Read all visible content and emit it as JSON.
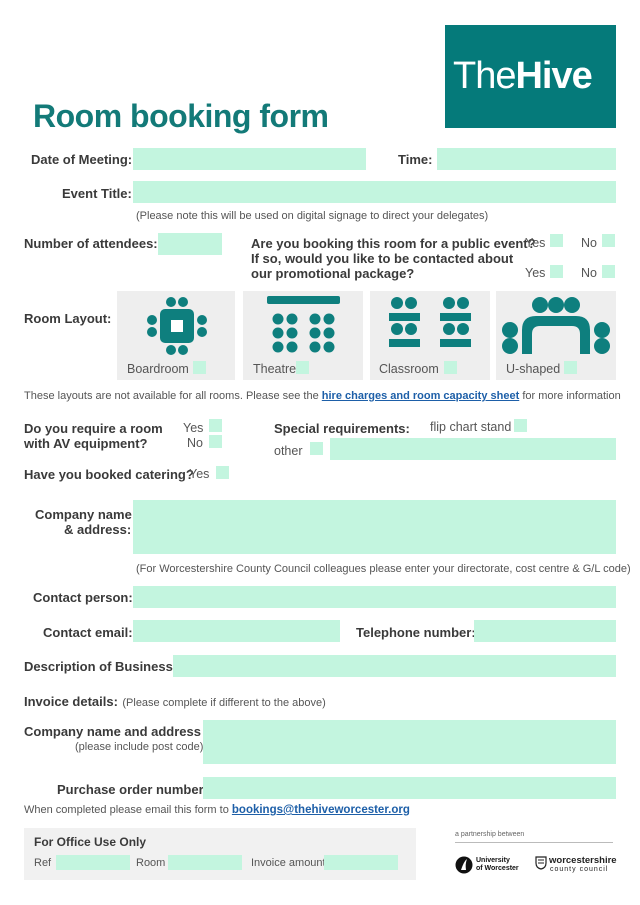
{
  "brand": {
    "the": "The",
    "hive": "Hive"
  },
  "title": "Room booking form",
  "labels": {
    "date": "Date of Meeting:",
    "time": "Time:",
    "event_title": "Event Title:",
    "event_note": "(Please note this will be used on digital signage to direct your delegates)",
    "attendees": "Number of attendees:",
    "public_q1": "Are you booking this room for a public event?",
    "public_q2_l1": "If so, would you like to be contacted about",
    "public_q2_l2": "our promotional package?",
    "yes": "Yes",
    "no": "No",
    "room_layout": "Room Layout:",
    "layouts_note_pre": "These layouts are not available for all rooms. Please see the",
    "layouts_link": "hire charges and room capacity sheet",
    "layouts_note_post": "for more information",
    "av_l1": "Do you require a room",
    "av_l2": "with AV equipment?",
    "special": "Special requirements:",
    "flip_chart": "flip chart stand",
    "other": "other",
    "catering": "Have you booked catering?",
    "company_l1": "Company name",
    "company_l2": "& address:",
    "council_note": "(For Worcestershire County Council colleagues please enter your directorate, cost centre & G/L code)",
    "contact_person": "Contact person:",
    "contact_email": "Contact email:",
    "telephone": "Telephone number:",
    "description": "Description of Business:",
    "invoice": "Invoice details:",
    "invoice_note": "(Please complete if different to the above)",
    "inv_company": "Company name and address",
    "inv_postcode": "(please include post code)",
    "po": "Purchase order number",
    "email_pre": "When completed please email this form to",
    "email": "bookings@thehiveworcester.org"
  },
  "layouts": [
    {
      "name": "Boardroom"
    },
    {
      "name": "Theatre"
    },
    {
      "name": "Classroom"
    },
    {
      "name": "U-shaped"
    }
  ],
  "office": {
    "title": "For Office Use Only",
    "ref": "Ref",
    "room": "Room",
    "invoice_amount": "Invoice amount"
  },
  "partners": {
    "intro": "a partnership between",
    "uw_l1": "University",
    "uw_l2": "of Worcester",
    "wcc_l1": "worcestershire",
    "wcc_l2": "county council"
  },
  "colors": {
    "brand": "#057a7a",
    "field": "#c3f5df",
    "title": "#137a78",
    "link": "#1d5fa8"
  }
}
